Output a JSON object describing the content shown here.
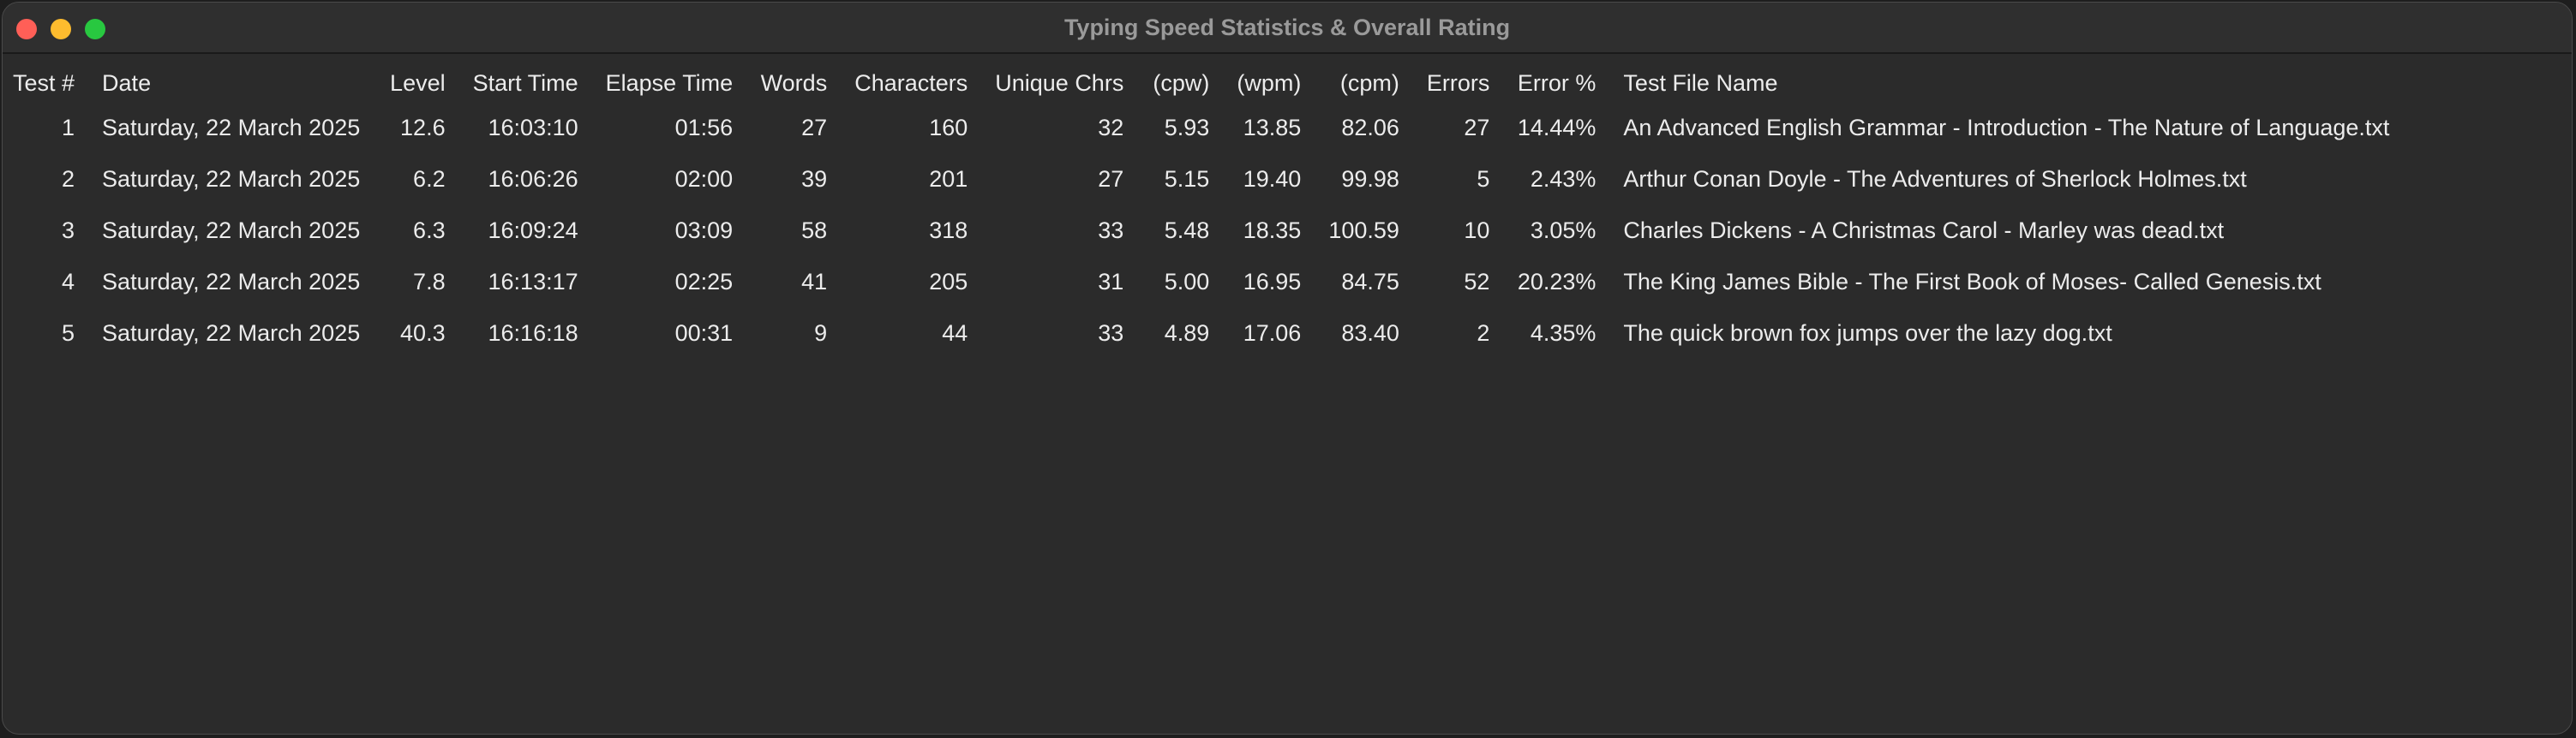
{
  "window": {
    "title": "Typing Speed Statistics & Overall Rating"
  },
  "table": {
    "headers": {
      "test_num": "Test #",
      "date": "Date",
      "level": "Level",
      "start_time": "Start Time",
      "elapse_time": "Elapse Time",
      "words": "Words",
      "characters": "Characters",
      "unique_chrs": "Unique Chrs",
      "cpw": "(cpw)",
      "wpm": "(wpm)",
      "cpm": "(cpm)",
      "errors": "Errors",
      "error_pct": "Error %",
      "file_name": "Test File Name"
    },
    "rows": [
      {
        "test_num": "1",
        "date": "Saturday, 22 March 2025",
        "level": "12.6",
        "start_time": "16:03:10",
        "elapse_time": "01:56",
        "words": "27",
        "characters": "160",
        "unique_chrs": "32",
        "cpw": "5.93",
        "wpm": "13.85",
        "cpm": "82.06",
        "errors": "27",
        "error_pct": "14.44%",
        "file_name": "An Advanced English Grammar - Introduction - The Nature of Language.txt"
      },
      {
        "test_num": "2",
        "date": "Saturday, 22 March 2025",
        "level": "6.2",
        "start_time": "16:06:26",
        "elapse_time": "02:00",
        "words": "39",
        "characters": "201",
        "unique_chrs": "27",
        "cpw": "5.15",
        "wpm": "19.40",
        "cpm": "99.98",
        "errors": "5",
        "error_pct": "2.43%",
        "file_name": "Arthur Conan Doyle - The Adventures of Sherlock Holmes.txt"
      },
      {
        "test_num": "3",
        "date": "Saturday, 22 March 2025",
        "level": "6.3",
        "start_time": "16:09:24",
        "elapse_time": "03:09",
        "words": "58",
        "characters": "318",
        "unique_chrs": "33",
        "cpw": "5.48",
        "wpm": "18.35",
        "cpm": "100.59",
        "errors": "10",
        "error_pct": "3.05%",
        "file_name": "Charles Dickens - A Christmas Carol - Marley was dead.txt"
      },
      {
        "test_num": "4",
        "date": "Saturday, 22 March 2025",
        "level": "7.8",
        "start_time": "16:13:17",
        "elapse_time": "02:25",
        "words": "41",
        "characters": "205",
        "unique_chrs": "31",
        "cpw": "5.00",
        "wpm": "16.95",
        "cpm": "84.75",
        "errors": "52",
        "error_pct": "20.23%",
        "file_name": "The King James Bible - The First Book of Moses- Called Genesis.txt"
      },
      {
        "test_num": "5",
        "date": "Saturday, 22 March 2025",
        "level": "40.3",
        "start_time": "16:16:18",
        "elapse_time": "00:31",
        "words": "9",
        "characters": "44",
        "unique_chrs": "33",
        "cpw": "4.89",
        "wpm": "17.06",
        "cpm": "83.40",
        "errors": "2",
        "error_pct": "4.35%",
        "file_name": "The quick brown fox jumps over the lazy dog.txt"
      }
    ]
  }
}
